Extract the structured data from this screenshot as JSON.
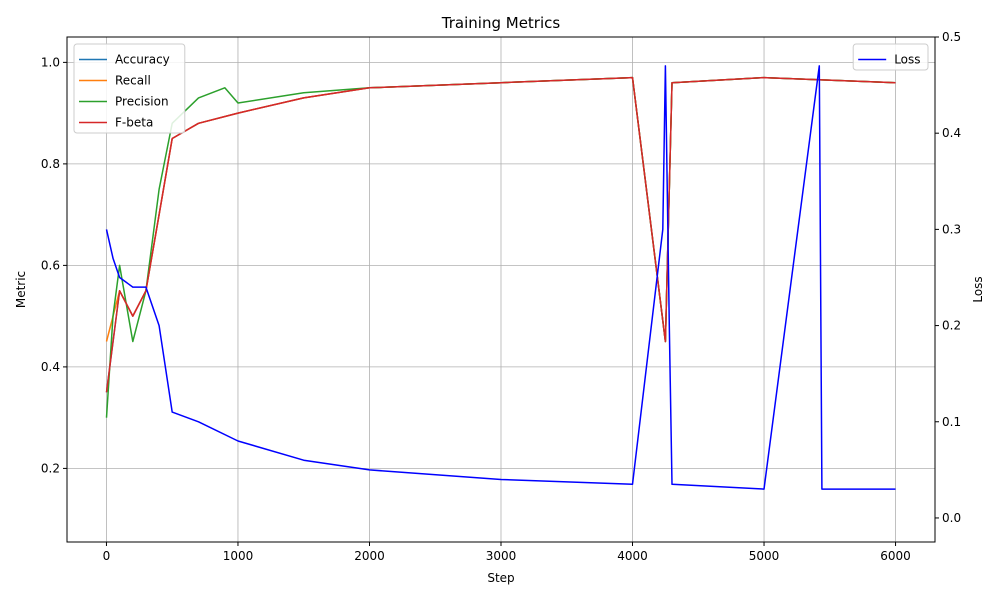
{
  "chart_data": {
    "type": "line",
    "title": "Training Metrics",
    "xlabel": "Step",
    "ylabel_left": "Metric",
    "ylabel_right": "Loss",
    "xlim": [
      -300,
      6300
    ],
    "ylim_left": [
      0.055,
      1.05
    ],
    "ylim_right": [
      -0.025,
      0.5
    ],
    "x_ticks": [
      0,
      1000,
      2000,
      3000,
      4000,
      5000,
      6000
    ],
    "x_tick_labels": [
      "0",
      "1000",
      "2000",
      "3000",
      "4000",
      "5000",
      "6000"
    ],
    "y_left_ticks": [
      0.2,
      0.4,
      0.6,
      0.8,
      1.0
    ],
    "y_left_tick_labels": [
      "0.2",
      "0.4",
      "0.6",
      "0.8",
      "1.0"
    ],
    "y_right_ticks": [
      0.0,
      0.1,
      0.2,
      0.3,
      0.4,
      0.5
    ],
    "y_right_tick_labels": [
      "0.0",
      "0.1",
      "0.2",
      "0.3",
      "0.4",
      "0.5"
    ],
    "grid": true,
    "legend_left_position": "upper-left",
    "legend_right_position": "upper-right",
    "series_left": [
      {
        "name": "Accuracy",
        "color": "#1f77b4",
        "x": [
          0,
          100,
          200,
          300,
          400,
          500,
          700,
          1000,
          1500,
          2000,
          3000,
          4000,
          4250,
          4300,
          5000,
          6000
        ],
        "y": [
          0.35,
          0.55,
          0.5,
          0.55,
          0.7,
          0.85,
          0.88,
          0.9,
          0.93,
          0.95,
          0.96,
          0.97,
          0.45,
          0.96,
          0.97,
          0.96
        ]
      },
      {
        "name": "Recall",
        "color": "#ff7f0e",
        "x": [
          0,
          100,
          200,
          300,
          400,
          500,
          700,
          1000,
          1500,
          2000,
          3000,
          4000,
          4250,
          4300,
          5000,
          6000
        ],
        "y": [
          0.45,
          0.55,
          0.5,
          0.55,
          0.7,
          0.85,
          0.88,
          0.9,
          0.93,
          0.95,
          0.96,
          0.97,
          0.45,
          0.96,
          0.97,
          0.96
        ]
      },
      {
        "name": "Precision",
        "color": "#2ca02c",
        "x": [
          0,
          50,
          100,
          200,
          300,
          400,
          500,
          700,
          900,
          1000,
          1500,
          2000,
          3000,
          4000,
          4250,
          4300,
          5000,
          6000
        ],
        "y": [
          0.3,
          0.5,
          0.6,
          0.45,
          0.55,
          0.75,
          0.88,
          0.93,
          0.95,
          0.92,
          0.94,
          0.95,
          0.96,
          0.97,
          0.45,
          0.96,
          0.97,
          0.96
        ]
      },
      {
        "name": "F-beta",
        "color": "#d62728",
        "x": [
          0,
          100,
          200,
          300,
          400,
          500,
          700,
          1000,
          1500,
          2000,
          3000,
          4000,
          4250,
          4300,
          5000,
          6000
        ],
        "y": [
          0.35,
          0.55,
          0.5,
          0.55,
          0.7,
          0.85,
          0.88,
          0.9,
          0.93,
          0.95,
          0.96,
          0.97,
          0.45,
          0.96,
          0.97,
          0.96
        ]
      }
    ],
    "series_right": [
      {
        "name": "Loss",
        "color": "#0000ff",
        "x": [
          0,
          50,
          100,
          200,
          300,
          400,
          500,
          700,
          1000,
          1500,
          2000,
          3000,
          4000,
          4230,
          4250,
          4280,
          4300,
          5000,
          5420,
          5440,
          6000
        ],
        "y": [
          0.3,
          0.27,
          0.25,
          0.24,
          0.24,
          0.2,
          0.11,
          0.1,
          0.08,
          0.06,
          0.05,
          0.04,
          0.035,
          0.3,
          0.47,
          0.2,
          0.035,
          0.03,
          0.47,
          0.03,
          0.03
        ]
      }
    ]
  }
}
